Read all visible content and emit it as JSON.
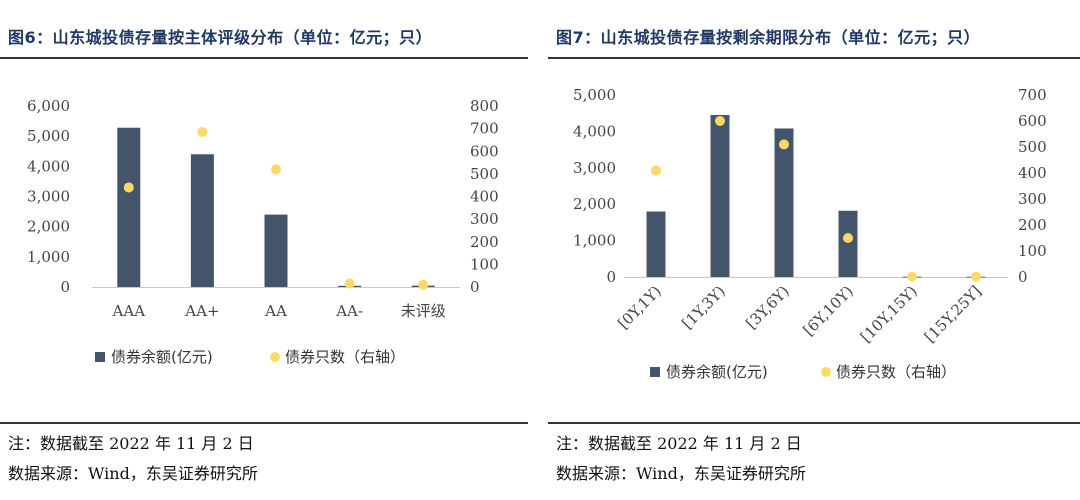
{
  "chart_data": [
    {
      "type": "bar",
      "title": "图6：山东城投债存量按主体评级分布（单位：亿元；只）",
      "categories": [
        "AAA",
        "AA+",
        "AA",
        "AA-",
        "未评级"
      ],
      "series": [
        {
          "name": "债券余额(亿元)",
          "type": "bar",
          "axis": "left",
          "color": "#44546a",
          "values": [
            5280,
            4400,
            2400,
            40,
            45
          ]
        },
        {
          "name": "债券只数（右轴）",
          "type": "scatter",
          "axis": "right",
          "color": "#ffd966",
          "values": [
            440,
            685,
            520,
            15,
            10
          ]
        }
      ],
      "y_left": {
        "min": 0,
        "max": 6000,
        "ticks": [
          "0",
          "1,000",
          "2,000",
          "3,000",
          "4,000",
          "5,000",
          "6,000"
        ]
      },
      "y_right": {
        "min": 0,
        "max": 800,
        "ticks": [
          "0",
          "100",
          "200",
          "300",
          "400",
          "500",
          "600",
          "700",
          "800"
        ]
      },
      "grid": false,
      "legend": "bottom",
      "xtick_rotation": 0,
      "notes": [
        "注：数据截至 2022 年 11 月 2 日",
        "数据来源：Wind，东吴证券研究所"
      ]
    },
    {
      "type": "bar",
      "title": "图7：山东城投债存量按剩余期限分布（单位：亿元；只）",
      "categories": [
        "[0Y,1Y)",
        "[1Y,3Y)",
        "[3Y,6Y)",
        "[6Y,10Y)",
        "[10Y,15Y)",
        "[15Y,25Y]"
      ],
      "series": [
        {
          "name": "债券余额(亿元)",
          "type": "bar",
          "axis": "left",
          "color": "#44546a",
          "values": [
            1800,
            4450,
            4080,
            1820,
            10,
            5
          ]
        },
        {
          "name": "债券只数（右轴）",
          "type": "scatter",
          "axis": "right",
          "color": "#ffd966",
          "values": [
            410,
            600,
            510,
            150,
            2,
            1
          ]
        }
      ],
      "y_left": {
        "min": 0,
        "max": 5000,
        "ticks": [
          "0",
          "1,000",
          "2,000",
          "3,000",
          "4,000",
          "5,000"
        ]
      },
      "y_right": {
        "min": 0,
        "max": 700,
        "ticks": [
          "0",
          "100",
          "200",
          "300",
          "400",
          "500",
          "600",
          "700"
        ]
      },
      "grid": false,
      "legend": "bottom",
      "xtick_rotation": -45,
      "notes": [
        "注：数据截至 2022 年 11 月 2 日",
        "数据来源：Wind，东吴证券研究所"
      ]
    }
  ]
}
